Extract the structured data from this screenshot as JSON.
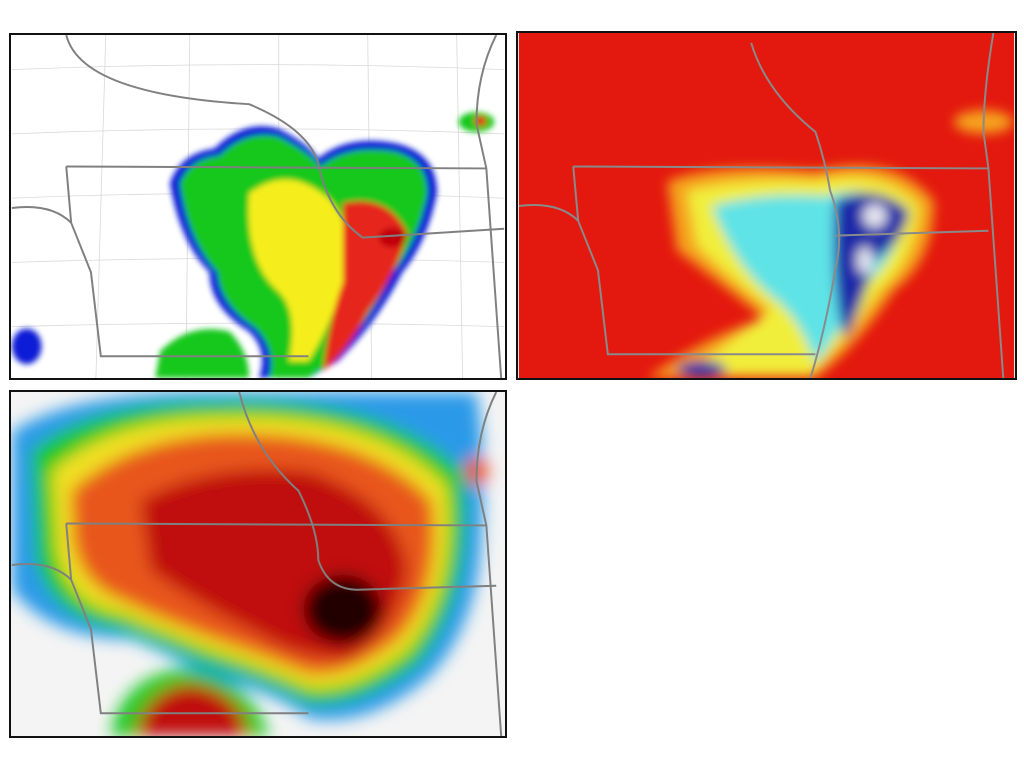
{
  "figure": {
    "panels": [
      {
        "id": "reflectivity",
        "palette": [
          "#0a1fd6",
          "#12c81a",
          "#f5ee1a",
          "#e6261a",
          "#c00010"
        ],
        "background": "#ffffff"
      },
      {
        "id": "cloud-top-temperature",
        "palette": [
          "#e3180f",
          "#f5a21a",
          "#f1ee3a",
          "#5fe3e6",
          "#1c2aa8",
          "#e6e6f0"
        ],
        "background": "#e3180f"
      },
      {
        "id": "brightness-temperature",
        "palette": [
          "#e8f4f8",
          "#2a9ae8",
          "#16c820",
          "#f0e020",
          "#e8561a",
          "#c01010",
          "#200000"
        ],
        "background": "#f4f4f4"
      }
    ],
    "map_line_color": "#808080"
  }
}
